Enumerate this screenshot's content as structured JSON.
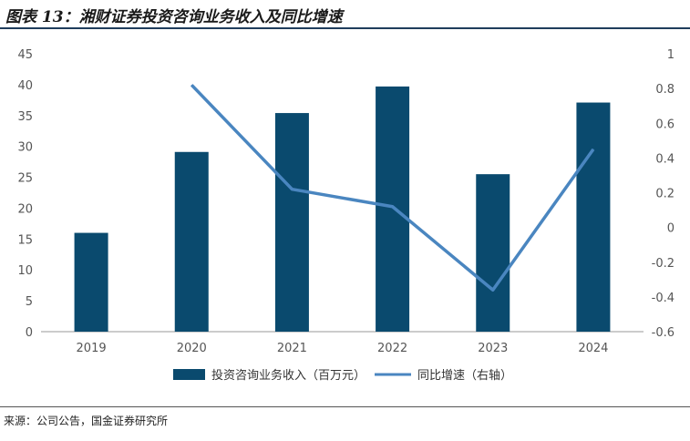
{
  "header": {
    "title": "图表 13：湘财证券投资咨询业务收入及同比增速"
  },
  "footer": {
    "source": "来源：公司公告，国金证券研究所"
  },
  "chart_data": {
    "type": "bar",
    "categories": [
      "2019",
      "2020",
      "2021",
      "2022",
      "2023",
      "2024"
    ],
    "series": [
      {
        "name": "投资咨询业务收入（百万元）",
        "type": "bar",
        "axis": "left",
        "values": [
          16.0,
          29.1,
          35.4,
          39.7,
          25.5,
          37.1
        ],
        "color": "#0a4a6e"
      },
      {
        "name": "同比增速（右轴）",
        "type": "line",
        "axis": "right",
        "values": [
          null,
          0.82,
          0.22,
          0.12,
          -0.36,
          0.45
        ],
        "color": "#4a86c0"
      }
    ],
    "y_left": {
      "ticks": [
        "0",
        "5",
        "10",
        "15",
        "20",
        "25",
        "30",
        "35",
        "40",
        "45"
      ],
      "ylim": [
        0,
        45
      ]
    },
    "y_right": {
      "ticks": [
        "-0.6",
        "-0.4",
        "-0.2",
        "0",
        "0.2",
        "0.4",
        "0.6",
        "0.8",
        "1"
      ],
      "ylim": [
        -0.6,
        1
      ]
    },
    "grid": false,
    "legend_position": "bottom"
  }
}
